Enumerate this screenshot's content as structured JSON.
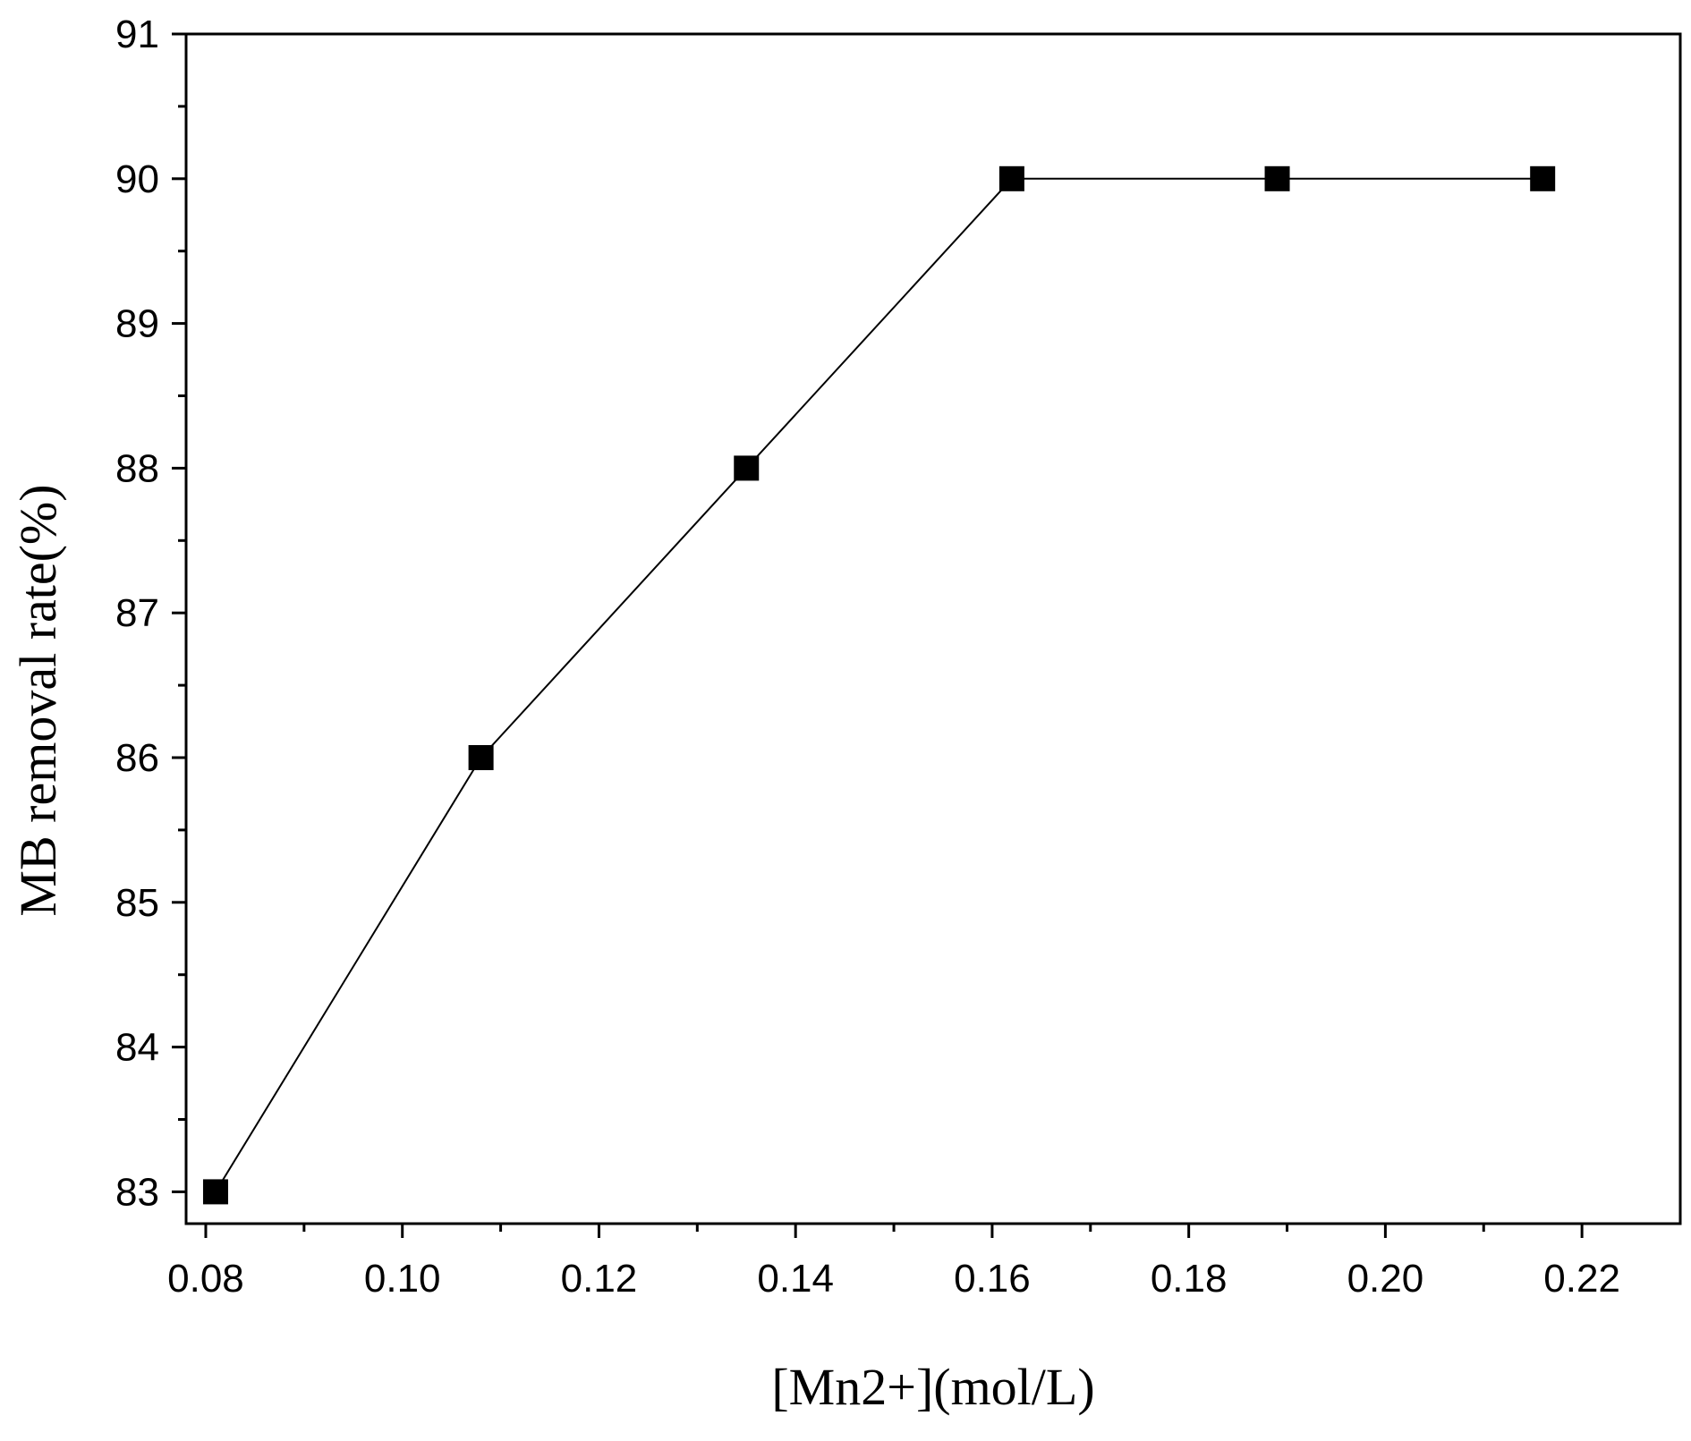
{
  "chart_data": {
    "type": "line",
    "title": "",
    "xlabel": "[Mn2+](mol/L)",
    "ylabel": "MB removal rate(%)",
    "xlim": [
      0.078,
      0.23
    ],
    "ylim": [
      82.78,
      91
    ],
    "x_ticks": [
      0.08,
      0.1,
      0.12,
      0.14,
      0.16,
      0.18,
      0.2,
      0.22
    ],
    "x_tick_labels": [
      "0.08",
      "0.10",
      "0.12",
      "0.14",
      "0.16",
      "0.18",
      "0.20",
      "0.22"
    ],
    "y_ticks": [
      83,
      84,
      85,
      86,
      87,
      88,
      89,
      90,
      91
    ],
    "y_tick_labels": [
      "83",
      "84",
      "85",
      "86",
      "87",
      "88",
      "89",
      "90",
      "91"
    ],
    "grid": false,
    "legend": "none",
    "marker": "square",
    "line_color": "#000000",
    "marker_color": "#000000",
    "series": [
      {
        "x": [
          0.081,
          0.108,
          0.135,
          0.162,
          0.189,
          0.216
        ],
        "y": [
          83,
          86,
          88,
          90,
          90,
          90
        ]
      }
    ]
  }
}
